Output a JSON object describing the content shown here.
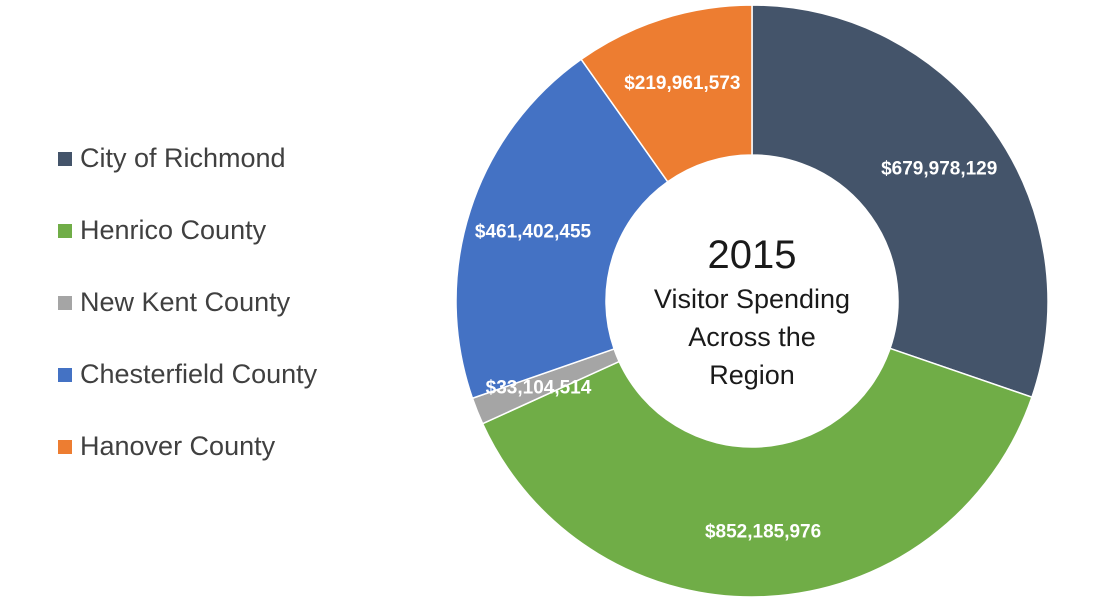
{
  "chart_data": {
    "type": "donut",
    "title_lines": [
      "2015",
      "Visitor Spending",
      "Across the",
      "Region"
    ],
    "categories": [
      "City of Richmond",
      "Henrico County",
      "New Kent County",
      "Chesterfield County",
      "Hanover County"
    ],
    "values": [
      679978129,
      852185976,
      33104514,
      461402455,
      219961573
    ],
    "data_labels": [
      "$679,978,129",
      "$852,185,976",
      "$33,104,514",
      "$461,402,455",
      "$219,961,573"
    ],
    "colors": [
      "#44546a",
      "#70ad47",
      "#a5a5a5",
      "#4472c4",
      "#ed7d31"
    ],
    "legend_position": "left"
  }
}
